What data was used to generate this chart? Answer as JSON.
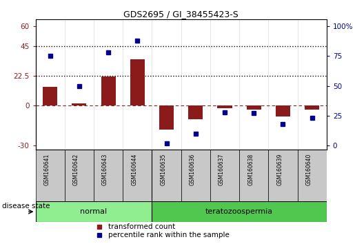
{
  "title": "GDS2695 / GI_38455423-S",
  "samples": [
    "GSM160641",
    "GSM160642",
    "GSM160643",
    "GSM160644",
    "GSM160635",
    "GSM160636",
    "GSM160637",
    "GSM160638",
    "GSM160639",
    "GSM160640"
  ],
  "transformed_count": [
    14,
    2,
    22,
    35,
    -18,
    -10,
    -2,
    -3,
    -8,
    -3
  ],
  "percentile_rank": [
    75,
    50,
    78,
    88,
    2,
    10,
    28,
    27,
    18,
    23
  ],
  "disease_state": [
    "normal",
    "normal",
    "normal",
    "normal",
    "teratozoospermia",
    "teratozoospermia",
    "teratozoospermia",
    "teratozoospermia",
    "teratozoospermia",
    "teratozoospermia"
  ],
  "normal_color": "#90EE90",
  "terato_color": "#50C850",
  "bar_color": "#8B1A1A",
  "point_color": "#00008B",
  "left_yticks": [
    -30,
    0,
    22.5,
    45,
    60
  ],
  "right_yticks": [
    0,
    25,
    50,
    75,
    100
  ],
  "left_ylim": [
    -33,
    65
  ],
  "dotted_lines": [
    22.5,
    45
  ],
  "legend_items": [
    "transformed count",
    "percentile rank within the sample"
  ],
  "disease_label": "disease state",
  "normal_label": "normal",
  "terato_label": "teratozoospermia",
  "sample_box_color": "#C8C8C8",
  "bar_width": 0.5
}
